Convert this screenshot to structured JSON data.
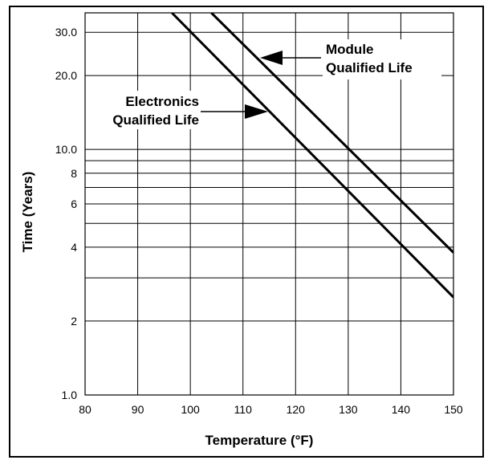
{
  "chart_data": {
    "type": "line",
    "title": "",
    "xlabel": "Temperature (°F)",
    "ylabel": "Time (Years)",
    "x_ticks": [
      80,
      90,
      100,
      110,
      120,
      130,
      140,
      150
    ],
    "x_tick_labels": [
      "80",
      "90",
      "100",
      "110",
      "120",
      "130",
      "140",
      "150"
    ],
    "y_scale": "log",
    "y_ticks": [
      1,
      2,
      4,
      6,
      8,
      10,
      20,
      30
    ],
    "y_tick_labels": [
      "1.0",
      "2",
      "4",
      "6",
      "8",
      "10.0",
      "20.0",
      "30.0"
    ],
    "y_gridlines": [
      1,
      2,
      3,
      4,
      5,
      6,
      7,
      8,
      9,
      10,
      20,
      30
    ],
    "xlim": [
      80,
      150
    ],
    "ylim": [
      1,
      36
    ],
    "grid": true,
    "series": [
      {
        "name": "Module Qualified Life",
        "x": [
          104,
          150
        ],
        "y": [
          36,
          3.8
        ]
      },
      {
        "name": "Electronics Qualified Life",
        "x": [
          96.5,
          150
        ],
        "y": [
          36,
          2.5
        ]
      }
    ],
    "annotations": [
      {
        "lines": [
          "Module",
          "Qualified Life"
        ],
        "points_to_series": 0,
        "arrow": "left"
      },
      {
        "lines": [
          "Electronics",
          "Qualified Life"
        ],
        "points_to_series": 1,
        "arrow": "right"
      }
    ]
  }
}
